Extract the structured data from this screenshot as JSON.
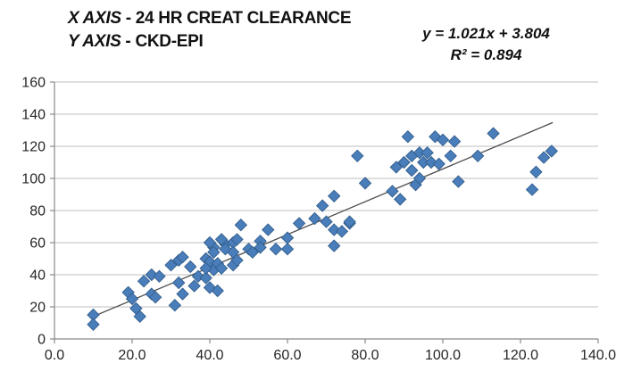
{
  "header": {
    "title_line1_prefix": "X AXIS",
    "title_line1_rest": " - 24 HR CREAT CLEARANCE",
    "title_line2_prefix": "Y AXIS",
    "title_line2_rest": " - CKD-EPI",
    "equation_line1": "y = 1.021x + 3.804",
    "equation_line2": "R² = 0.894"
  },
  "chart_data": {
    "type": "scatter",
    "title": "X AXIS - 24 HR CREAT CLEARANCE / Y AXIS - CKD-EPI",
    "xlabel": "24 HR CREAT CLEARANCE",
    "ylabel": "CKD-EPI",
    "xlim": [
      0,
      140
    ],
    "ylim": [
      0,
      160
    ],
    "x_tick_values": [
      0,
      20,
      40,
      60,
      80,
      100,
      120,
      140
    ],
    "x_tick_labels": [
      "0.0",
      "20.0",
      "40.0",
      "60.0",
      "80.0",
      "100.0",
      "120.0",
      "140.0"
    ],
    "y_tick_values": [
      0,
      20,
      40,
      60,
      80,
      100,
      120,
      140,
      160
    ],
    "y_tick_labels": [
      "0",
      "20",
      "40",
      "60",
      "80",
      "100",
      "120",
      "140",
      "160"
    ],
    "grid": "horizontal",
    "legend": "none",
    "marker": {
      "shape": "diamond",
      "fill": "#4a7ebb",
      "border": "#35618f",
      "size": 13
    },
    "trendline": {
      "type": "linear",
      "equation": "y = 1.021x + 3.804",
      "slope": 1.021,
      "intercept": 3.804,
      "r_squared": 0.894,
      "x_start": 9.8,
      "x_end": 128.3,
      "color": "#4d4d4d"
    },
    "points": [
      [
        10,
        15
      ],
      [
        10,
        9
      ],
      [
        19,
        29
      ],
      [
        20,
        25
      ],
      [
        21,
        19
      ],
      [
        22,
        14
      ],
      [
        25,
        28
      ],
      [
        26,
        26
      ],
      [
        31,
        21
      ],
      [
        33,
        28
      ],
      [
        23,
        36
      ],
      [
        25,
        40
      ],
      [
        27,
        39
      ],
      [
        30,
        46
      ],
      [
        32,
        49
      ],
      [
        33,
        51
      ],
      [
        35,
        45
      ],
      [
        32,
        35
      ],
      [
        36,
        33
      ],
      [
        37,
        39
      ],
      [
        39,
        38
      ],
      [
        40,
        32
      ],
      [
        39,
        50
      ],
      [
        41,
        43
      ],
      [
        42,
        30
      ],
      [
        40,
        48
      ],
      [
        42,
        47
      ],
      [
        39,
        44
      ],
      [
        43,
        44
      ],
      [
        46,
        46
      ],
      [
        47,
        49
      ],
      [
        41,
        57
      ],
      [
        44,
        59
      ],
      [
        40,
        60
      ],
      [
        43,
        62
      ],
      [
        46,
        60
      ],
      [
        41,
        54
      ],
      [
        44,
        56
      ],
      [
        46,
        54
      ],
      [
        47,
        62
      ],
      [
        48,
        71
      ],
      [
        50,
        56
      ],
      [
        51,
        54
      ],
      [
        53,
        61
      ],
      [
        55,
        68
      ],
      [
        53,
        57
      ],
      [
        57,
        56
      ],
      [
        60,
        63
      ],
      [
        60,
        56
      ],
      [
        63,
        72
      ],
      [
        67,
        75
      ],
      [
        69,
        83
      ],
      [
        72,
        89
      ],
      [
        70,
        73
      ],
      [
        72,
        68
      ],
      [
        74,
        67
      ],
      [
        76,
        72
      ],
      [
        72,
        58
      ],
      [
        76,
        73
      ],
      [
        78,
        114
      ],
      [
        80,
        97
      ],
      [
        87,
        92
      ],
      [
        89,
        87
      ],
      [
        88,
        107
      ],
      [
        90,
        110
      ],
      [
        91,
        126
      ],
      [
        92,
        114
      ],
      [
        92,
        105
      ],
      [
        93,
        96
      ],
      [
        94,
        100
      ],
      [
        95,
        110
      ],
      [
        94,
        116
      ],
      [
        96,
        116
      ],
      [
        98,
        126
      ],
      [
        100,
        124
      ],
      [
        103,
        123
      ],
      [
        102,
        114
      ],
      [
        97,
        110
      ],
      [
        99,
        109
      ],
      [
        104,
        98
      ],
      [
        109,
        114
      ],
      [
        113,
        128
      ],
      [
        123,
        93
      ],
      [
        124,
        104
      ],
      [
        126,
        113
      ],
      [
        128,
        117
      ]
    ]
  },
  "colors": {
    "background": "#ffffff",
    "gridline": "#bfbfbf",
    "axis": "#898989",
    "tick_label": "#262626",
    "marker_fill": "#4a7ebb",
    "marker_border": "#35618f",
    "trendline": "#4d4d4d",
    "text": "#111111"
  }
}
